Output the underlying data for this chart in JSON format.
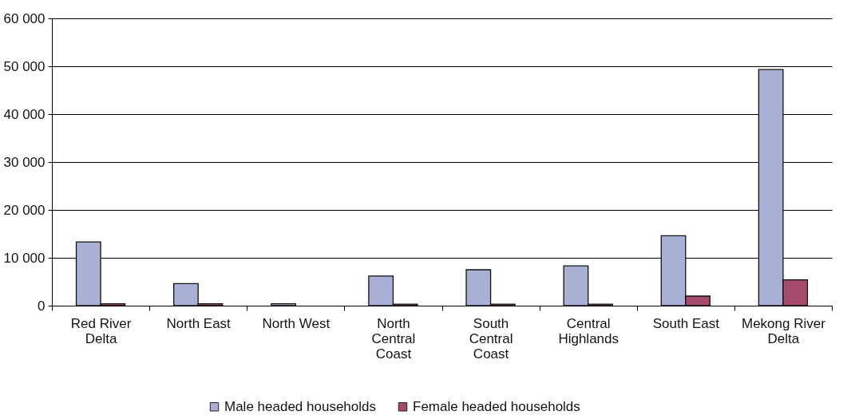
{
  "chart_data": {
    "type": "bar",
    "categories": [
      "Red River Delta",
      "North East",
      "North West",
      "North Central Coast",
      "South Central Coast",
      "Central Highlands",
      "South East",
      "Mekong River Delta"
    ],
    "series": [
      {
        "name": "Male headed households",
        "color": "#a9afd5",
        "values": [
          13300,
          4600,
          400,
          6200,
          7500,
          8300,
          14600,
          49300
        ]
      },
      {
        "name": "Female headed households",
        "color": "#a44a6d",
        "values": [
          400,
          400,
          null,
          300,
          300,
          300,
          2000,
          5400
        ]
      }
    ],
    "ylim": [
      0,
      60000
    ],
    "yticks": [
      {
        "value": 0,
        "label": "0"
      },
      {
        "value": 10000,
        "label": "10 000"
      },
      {
        "value": 20000,
        "label": "20 000"
      },
      {
        "value": 30000,
        "label": "30 000"
      },
      {
        "value": 40000,
        "label": "40 000"
      },
      {
        "value": 50000,
        "label": "50 000"
      },
      {
        "value": 60000,
        "label": "60 000"
      }
    ],
    "grid": "y",
    "legend": "bottom"
  }
}
